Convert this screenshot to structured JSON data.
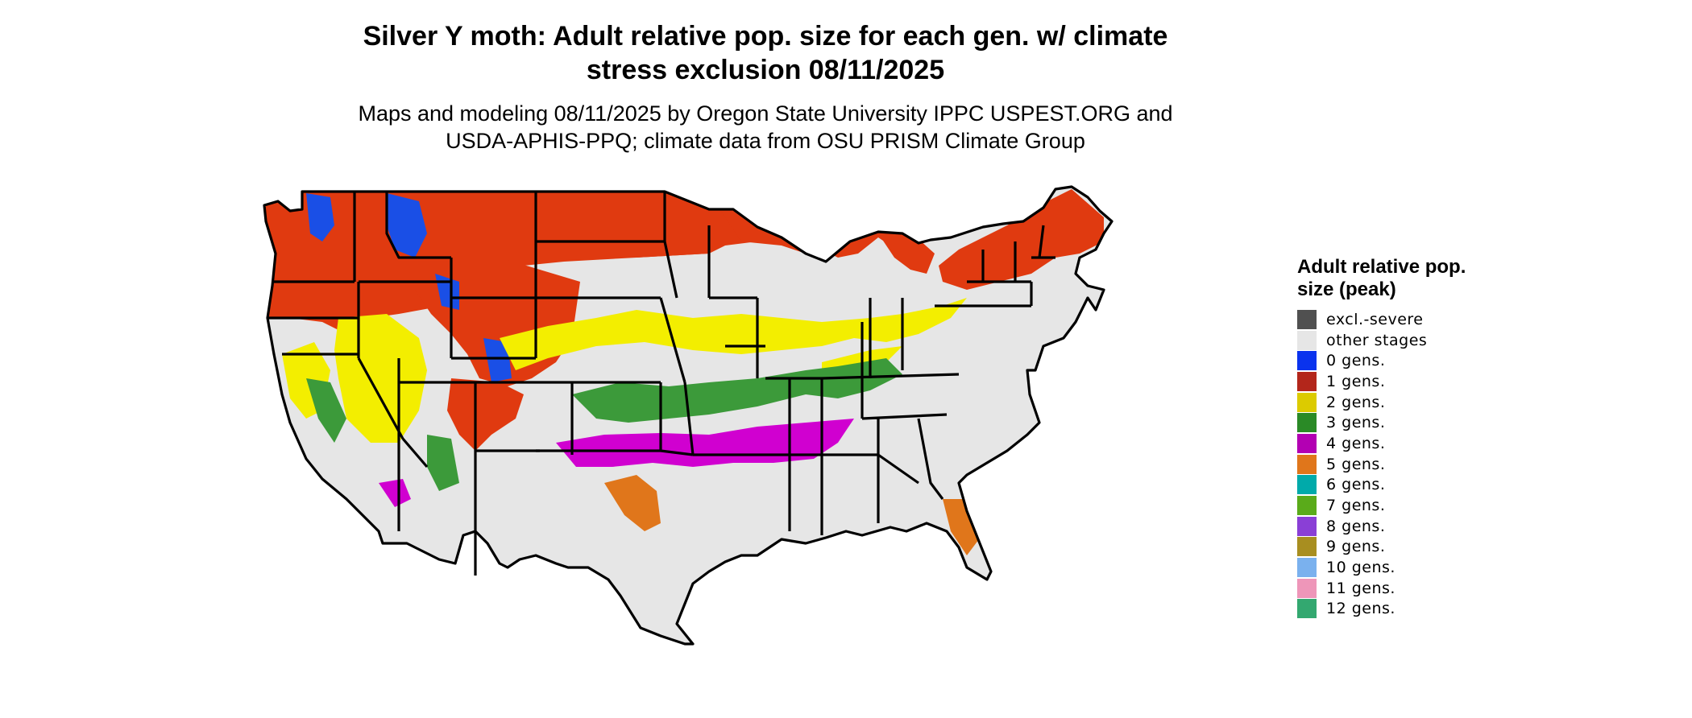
{
  "header": {
    "title_line1": "Silver Y moth: Adult relative pop. size for each gen. w/ climate",
    "title_line2": "stress exclusion 08/11/2025",
    "subtitle_line1": "Maps and modeling 08/11/2025 by Oregon State University IPPC USPEST.ORG and",
    "subtitle_line2": "USDA-APHIS-PPQ; climate data from OSU PRISM Climate Group"
  },
  "legend": {
    "title": "Adult relative pop. size (peak)",
    "items": [
      {
        "label": "excl.-severe",
        "color": "#505050"
      },
      {
        "label": "other stages",
        "color": "#e6e6e6"
      },
      {
        "label": "0 gens.",
        "color": "#0a33ee"
      },
      {
        "label": "1 gens.",
        "color": "#b3261b"
      },
      {
        "label": "2 gens.",
        "color": "#dccb00"
      },
      {
        "label": "3 gens.",
        "color": "#2a8a26"
      },
      {
        "label": "4 gens.",
        "color": "#b300b3"
      },
      {
        "label": "5 gens.",
        "color": "#e0761b"
      },
      {
        "label": "6 gens.",
        "color": "#00aaaa"
      },
      {
        "label": "7 gens.",
        "color": "#5aab1a"
      },
      {
        "label": "8 gens.",
        "color": "#8a3fd6"
      },
      {
        "label": "9 gens.",
        "color": "#a88e20"
      },
      {
        "label": "10 gens.",
        "color": "#7ab1ee"
      },
      {
        "label": "11 gens.",
        "color": "#ee96b9"
      },
      {
        "label": "12 gens.",
        "color": "#33a870"
      }
    ]
  },
  "map_colors": {
    "background": "#e6e6e6",
    "zone_1gen": "#e03a10",
    "zone_1gen_dark": "#b3261b",
    "zone_2gen": "#f3ee00",
    "zone_2gen_dark": "#cfc000",
    "zone_3gen": "#3c9a3a",
    "zone_4gen": "#d000d0",
    "zone_5gen": "#e0761b",
    "zone_0gen": "#1a4fe6",
    "border": "#000000"
  }
}
